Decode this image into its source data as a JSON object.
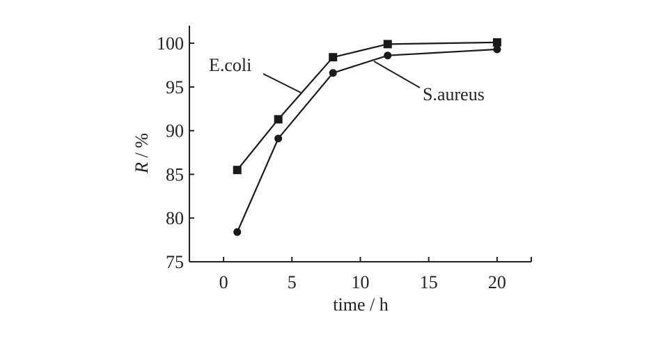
{
  "chart_data": {
    "type": "line",
    "xlabel": "time / h",
    "ylabel_symbol": "R",
    "ylabel_unit": " / %",
    "xlim": [
      -2.5,
      22.5
    ],
    "ylim": [
      75,
      102
    ],
    "xticks": [
      0,
      5,
      10,
      15,
      20
    ],
    "yticks": [
      75,
      80,
      85,
      90,
      95,
      100
    ],
    "grid": false,
    "series": [
      {
        "name": "E.coli",
        "marker": "square",
        "color": "#1a1a1a",
        "x": [
          1,
          4,
          8,
          12,
          20
        ],
        "values": [
          85.5,
          91.3,
          98.4,
          99.9,
          100.1
        ]
      },
      {
        "name": "S.aureus",
        "marker": "circle",
        "color": "#1a1a1a",
        "x": [
          1,
          4,
          8,
          12,
          20
        ],
        "values": [
          78.4,
          89.1,
          96.6,
          98.6,
          99.3
        ]
      }
    ]
  }
}
